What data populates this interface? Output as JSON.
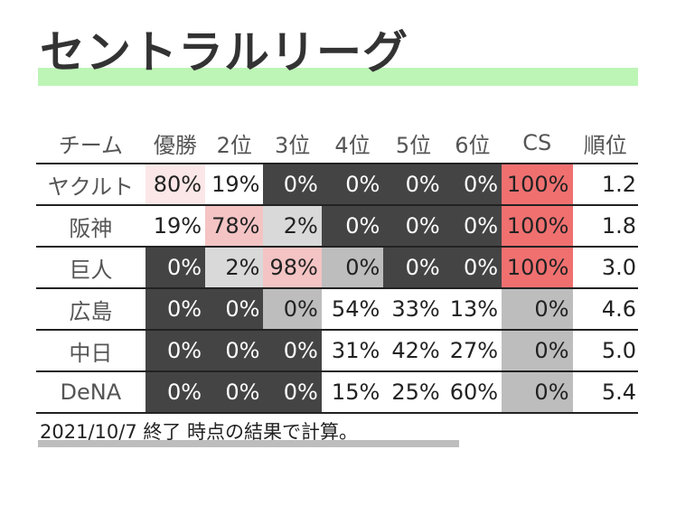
{
  "title": "セントラルリーグ",
  "footnote": "2021/10/7 終了 時点の結果で計算。",
  "colors": {
    "title_highlight": "#bdf5b6",
    "zero_dark": "#444444",
    "zero_gray": "#bdbdbd",
    "zero_light": "#d9d9d9",
    "cs_sure": "#f07070",
    "likely_pink": "#f4c4c4",
    "possible_pink": "#fbe7e7"
  },
  "chart_data": {
    "type": "table",
    "columns": [
      "チーム",
      "優勝",
      "2位",
      "3位",
      "4位",
      "5位",
      "6位",
      "CS",
      "順位"
    ],
    "rows": [
      {
        "team": "ヤクルト",
        "cells": [
          "80%",
          "19%",
          "0%",
          "0%",
          "0%",
          "0%",
          "100%"
        ],
        "rank": "1.2"
      },
      {
        "team": "阪神",
        "cells": [
          "19%",
          "78%",
          "2%",
          "0%",
          "0%",
          "0%",
          "100%"
        ],
        "rank": "1.8"
      },
      {
        "team": "巨人",
        "cells": [
          "0%",
          "2%",
          "98%",
          "0%",
          "0%",
          "0%",
          "100%"
        ],
        "rank": "3.0"
      },
      {
        "team": "広島",
        "cells": [
          "0%",
          "0%",
          "0%",
          "54%",
          "33%",
          "13%",
          "0%"
        ],
        "rank": "4.6"
      },
      {
        "team": "中日",
        "cells": [
          "0%",
          "0%",
          "0%",
          "31%",
          "42%",
          "27%",
          "0%"
        ],
        "rank": "5.0"
      },
      {
        "team": "DeNA",
        "cells": [
          "0%",
          "0%",
          "0%",
          "15%",
          "25%",
          "60%",
          "0%"
        ],
        "rank": "5.4"
      }
    ]
  }
}
